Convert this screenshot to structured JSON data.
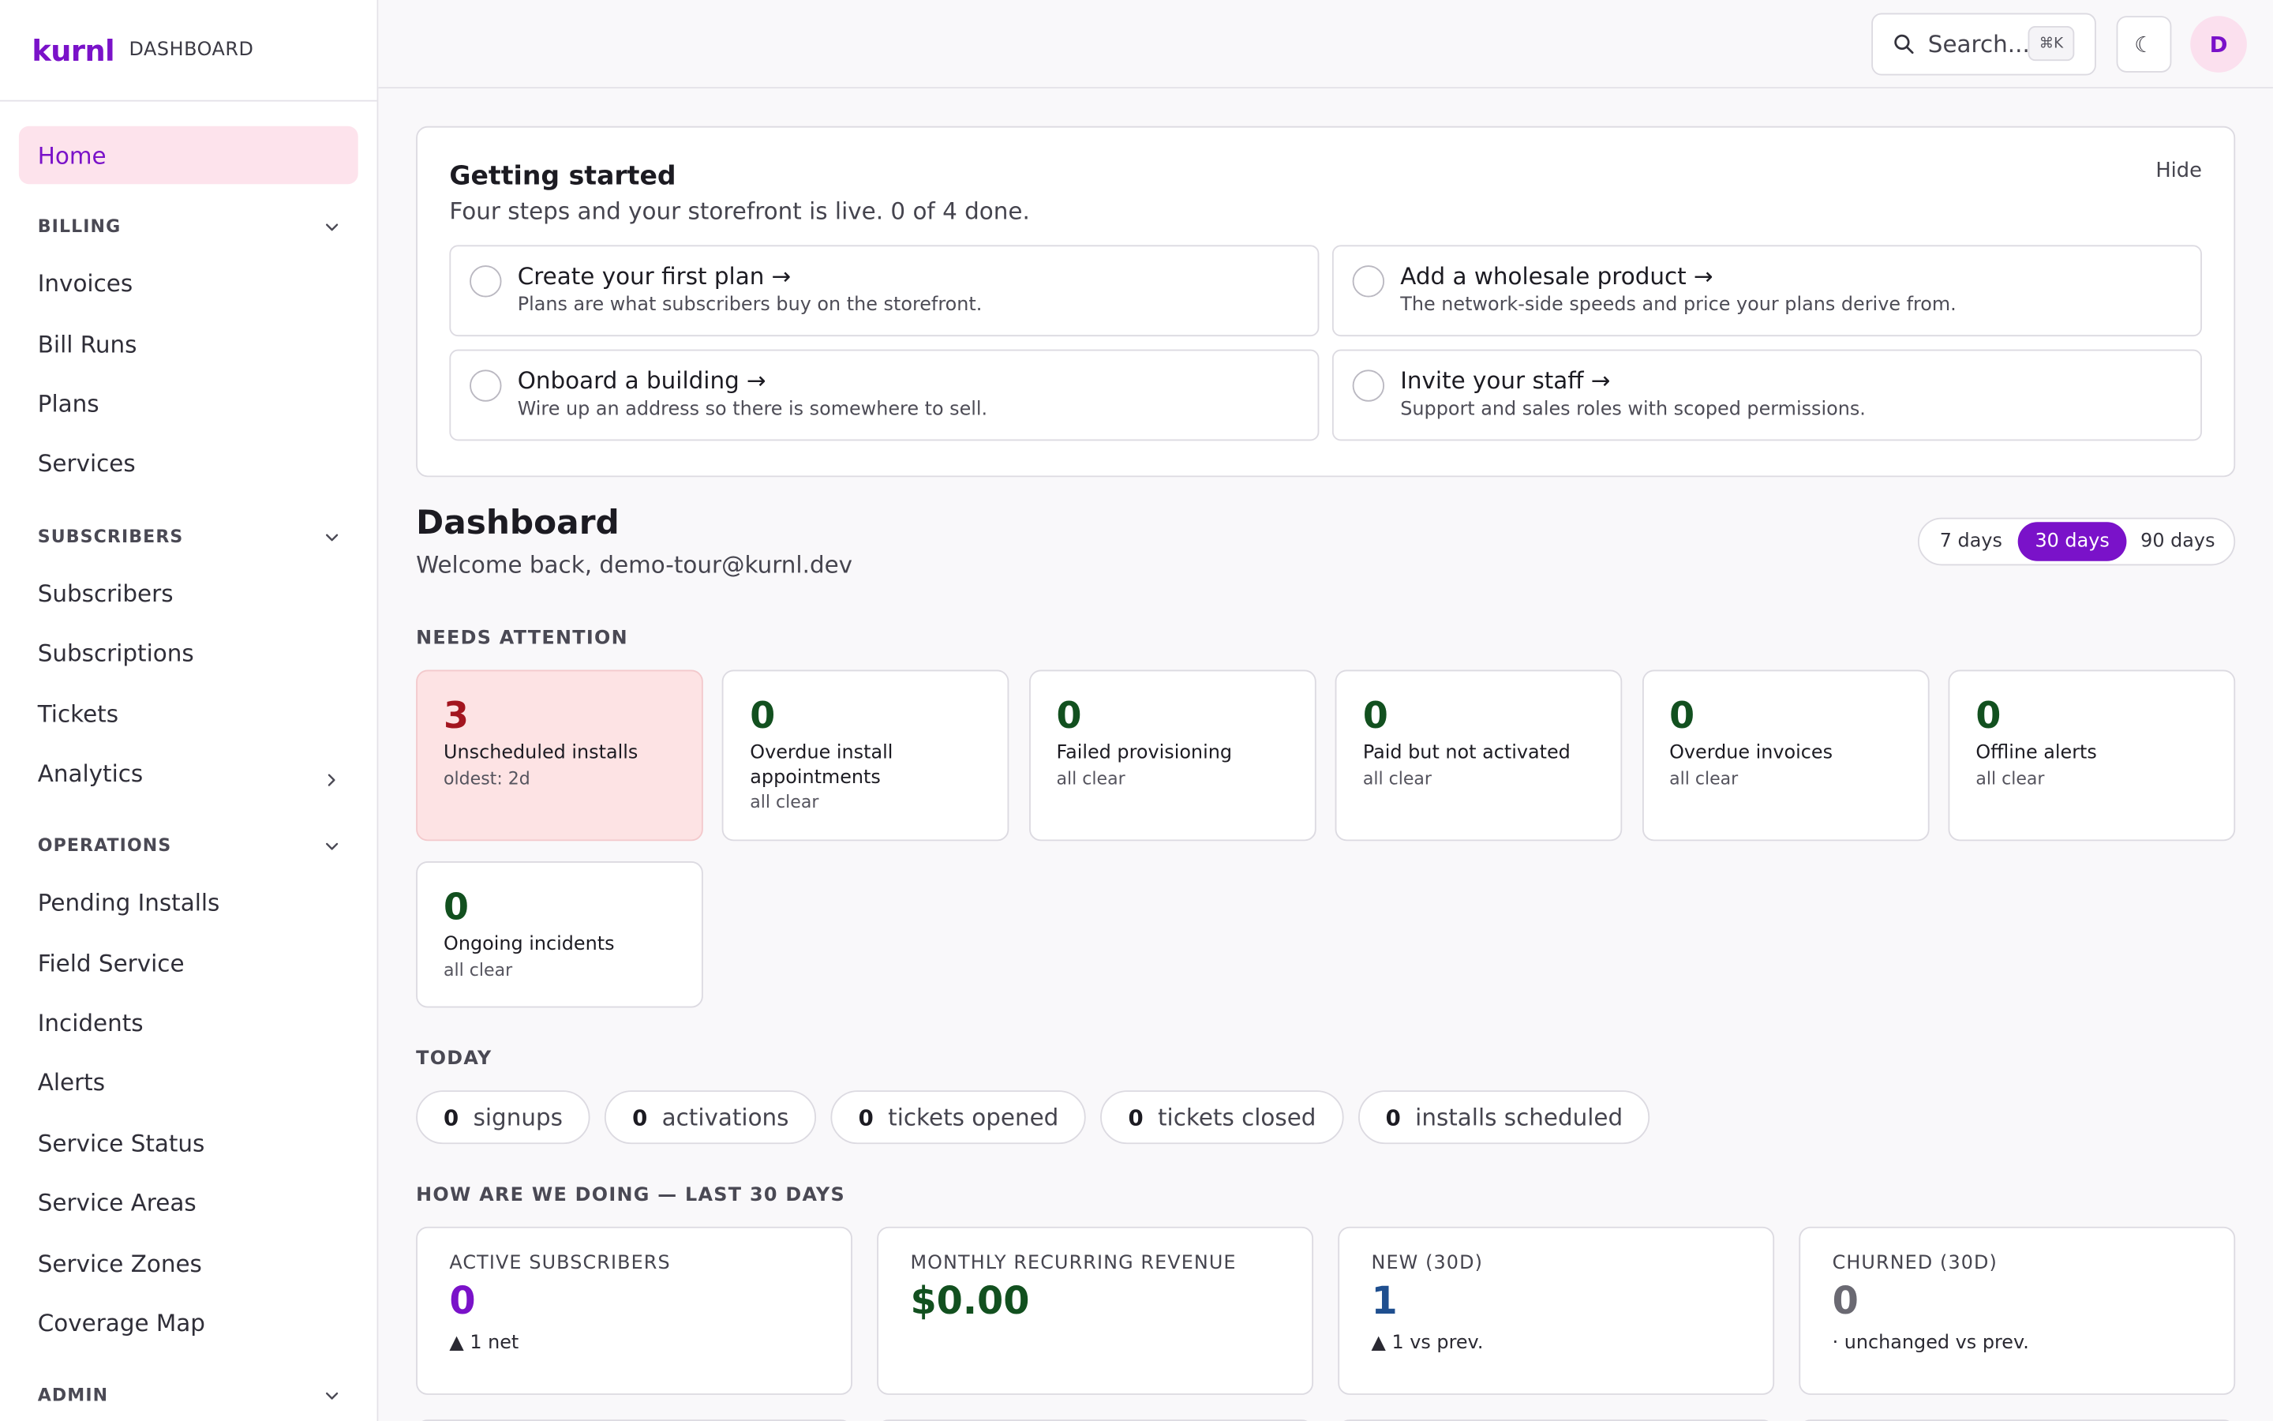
{
  "brand": {
    "logo": "kurnl",
    "subtitle": "DASHBOARD"
  },
  "sidebar": {
    "home": "Home",
    "sections": [
      {
        "title": "BILLING",
        "items": [
          "Invoices",
          "Bill Runs",
          "Plans",
          "Services"
        ]
      },
      {
        "title": "SUBSCRIBERS",
        "items": [
          "Subscribers",
          "Subscriptions",
          "Tickets",
          "Analytics"
        ]
      },
      {
        "title": "OPERATIONS",
        "items": [
          "Pending Installs",
          "Field Service",
          "Incidents",
          "Alerts",
          "Service Status",
          "Service Areas",
          "Service Zones",
          "Coverage Map"
        ]
      },
      {
        "title": "ADMIN",
        "items": []
      }
    ]
  },
  "topbar": {
    "search_placeholder": "Search...",
    "search_shortcut": "⌘K",
    "theme_icon": "☾",
    "avatar_initial": "D"
  },
  "getting_started": {
    "title": "Getting started",
    "subtitle": "Four steps and your storefront is live. 0 of 4 done.",
    "hide": "Hide",
    "steps": [
      {
        "title": "Create your first plan →",
        "desc": "Plans are what subscribers buy on the storefront."
      },
      {
        "title": "Add a wholesale product →",
        "desc": "The network-side speeds and price your plans derive from."
      },
      {
        "title": "Onboard a building →",
        "desc": "Wire up an address so there is somewhere to sell."
      },
      {
        "title": "Invite your staff →",
        "desc": "Support and sales roles with scoped permissions."
      }
    ]
  },
  "dashboard": {
    "title": "Dashboard",
    "welcome": "Welcome back, demo-tour@kurnl.dev",
    "ranges": [
      "7 days",
      "30 days",
      "90 days"
    ],
    "active_range": "30 days"
  },
  "needs_attention": {
    "label": "NEEDS ATTENTION",
    "cards": [
      {
        "num": "3",
        "label": "Unscheduled installs",
        "sub": "oldest: 2d",
        "alert": true
      },
      {
        "num": "0",
        "label": "Overdue install appointments",
        "sub": "all clear"
      },
      {
        "num": "0",
        "label": "Failed provisioning",
        "sub": "all clear"
      },
      {
        "num": "0",
        "label": "Paid but not activated",
        "sub": "all clear"
      },
      {
        "num": "0",
        "label": "Overdue invoices",
        "sub": "all clear"
      },
      {
        "num": "0",
        "label": "Offline alerts",
        "sub": "all clear"
      },
      {
        "num": "0",
        "label": "Ongoing incidents",
        "sub": "all clear"
      }
    ]
  },
  "today": {
    "label": "TODAY",
    "pills": [
      {
        "num": "0",
        "label": "signups"
      },
      {
        "num": "0",
        "label": "activations"
      },
      {
        "num": "0",
        "label": "tickets opened"
      },
      {
        "num": "0",
        "label": "tickets closed"
      },
      {
        "num": "0",
        "label": "installs scheduled"
      }
    ]
  },
  "performance": {
    "label": "HOW ARE WE DOING — LAST 30 DAYS",
    "kpis": [
      {
        "key": "ACTIVE SUBSCRIBERS",
        "value": "0",
        "change": "▲ 1 net",
        "color": "#7a12c9"
      },
      {
        "key": "MONTHLY RECURRING REVENUE",
        "value": "$0.00",
        "change": "",
        "color": "#12501f"
      },
      {
        "key": "NEW (30D)",
        "value": "1",
        "change": "▲ 1 vs prev.",
        "color": "#1f4f8f"
      },
      {
        "key": "CHURNED (30D)",
        "value": "0",
        "change": "· unchanged vs prev.",
        "color": "#6a6972"
      }
    ]
  }
}
